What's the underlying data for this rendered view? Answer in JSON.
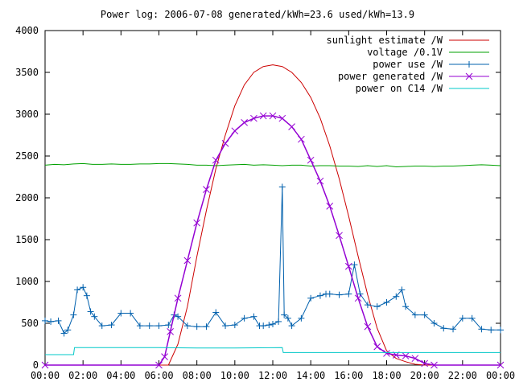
{
  "chart_data": {
    "type": "line",
    "title": "Power log: 2006-07-08 generated/kWh=23.6 used/kWh=13.9",
    "xlabel": "",
    "ylabel": "",
    "xlim": [
      0,
      24
    ],
    "ylim": [
      0,
      4000
    ],
    "x_ticks": [
      0,
      2,
      4,
      6,
      8,
      10,
      12,
      14,
      16,
      18,
      20,
      22,
      24
    ],
    "x_tick_labels": [
      "00:00",
      "02:00",
      "04:00",
      "06:00",
      "08:00",
      "10:00",
      "12:00",
      "14:00",
      "16:00",
      "18:00",
      "20:00",
      "22:00",
      "00:00"
    ],
    "y_ticks": [
      0,
      500,
      1000,
      1500,
      2000,
      2500,
      3000,
      3500,
      4000
    ],
    "y_tick_labels": [
      "0",
      "500",
      "1000",
      "1500",
      "2000",
      "2500",
      "3000",
      "3500",
      "4000"
    ],
    "grid": false,
    "legend_position": "top-right",
    "series": [
      {
        "name": "sunlight estimate /W",
        "color": "#cc0000",
        "marker": "none",
        "x": [
          0,
          6.5,
          7,
          7.5,
          8,
          8.5,
          9,
          9.5,
          10,
          10.5,
          11,
          11.5,
          12,
          12.5,
          13,
          13.5,
          14,
          14.5,
          15,
          15.5,
          16,
          16.5,
          17,
          17.5,
          18,
          18.5,
          19,
          19.5,
          20,
          24
        ],
        "y": [
          0,
          0,
          250,
          700,
          1300,
          1850,
          2350,
          2750,
          3100,
          3350,
          3500,
          3570,
          3590,
          3570,
          3500,
          3380,
          3200,
          2950,
          2620,
          2230,
          1780,
          1300,
          840,
          440,
          170,
          80,
          40,
          10,
          0,
          0
        ]
      },
      {
        "name": "voltage /0.1V",
        "color": "#00a000",
        "marker": "none",
        "x": [
          0,
          0.5,
          1,
          1.5,
          2,
          2.5,
          3,
          3.5,
          4,
          4.5,
          5,
          5.5,
          6,
          6.5,
          7,
          7.5,
          8,
          8.5,
          9,
          9.5,
          10,
          10.5,
          11,
          11.5,
          12,
          12.5,
          13,
          13.5,
          14,
          14.5,
          15,
          15.5,
          16,
          16.5,
          17,
          17.5,
          18,
          18.5,
          19,
          19.5,
          20,
          20.5,
          21,
          21.5,
          22,
          22.5,
          23,
          23.5,
          24
        ],
        "y": [
          2390,
          2400,
          2395,
          2405,
          2410,
          2400,
          2400,
          2405,
          2400,
          2400,
          2405,
          2405,
          2410,
          2410,
          2405,
          2400,
          2390,
          2390,
          2385,
          2390,
          2395,
          2400,
          2390,
          2395,
          2390,
          2385,
          2390,
          2390,
          2380,
          2385,
          2385,
          2380,
          2380,
          2375,
          2385,
          2375,
          2385,
          2370,
          2375,
          2380,
          2380,
          2375,
          2380,
          2380,
          2385,
          2390,
          2395,
          2390,
          2385
        ]
      },
      {
        "name": "power use /W",
        "color": "#0060ad",
        "marker": "plus",
        "x": [
          0,
          0.3,
          0.7,
          1.0,
          1.2,
          1.5,
          1.7,
          2.0,
          2.2,
          2.4,
          2.6,
          3.0,
          3.5,
          4.0,
          4.5,
          5.0,
          5.5,
          6.0,
          6.5,
          6.8,
          7.0,
          7.5,
          8.0,
          8.5,
          9.0,
          9.5,
          10.0,
          10.5,
          11.0,
          11.3,
          11.5,
          11.8,
          12.0,
          12.3,
          12.5,
          12.6,
          12.8,
          13.0,
          13.5,
          14.0,
          14.5,
          14.8,
          15.0,
          15.5,
          16.0,
          16.3,
          16.6,
          17.0,
          17.5,
          18.0,
          18.5,
          18.8,
          19.0,
          19.5,
          20.0,
          20.5,
          21.0,
          21.5,
          22.0,
          22.5,
          23.0,
          23.5,
          24.0
        ],
        "y": [
          530,
          520,
          530,
          380,
          420,
          600,
          900,
          930,
          830,
          640,
          580,
          470,
          480,
          620,
          620,
          470,
          470,
          470,
          480,
          600,
          580,
          470,
          460,
          460,
          630,
          470,
          480,
          560,
          580,
          470,
          470,
          480,
          490,
          520,
          2130,
          600,
          560,
          470,
          560,
          800,
          830,
          850,
          850,
          840,
          850,
          1200,
          850,
          720,
          700,
          750,
          820,
          900,
          700,
          600,
          600,
          500,
          440,
          430,
          560,
          560,
          430,
          420,
          420
        ]
      },
      {
        "name": "power generated /W",
        "color": "#9400d3",
        "marker": "cross",
        "x": [
          0,
          6.0,
          6.3,
          6.6,
          7.0,
          7.5,
          8.0,
          8.5,
          9.0,
          9.5,
          10.0,
          10.5,
          11.0,
          11.5,
          12.0,
          12.5,
          13.0,
          13.5,
          14.0,
          14.5,
          15.0,
          15.5,
          16.0,
          16.5,
          17.0,
          17.5,
          18.0,
          18.5,
          19.0,
          19.5,
          20.0,
          20.5,
          24.0
        ],
        "y": [
          0,
          0,
          100,
          400,
          800,
          1250,
          1700,
          2100,
          2450,
          2650,
          2800,
          2900,
          2950,
          2980,
          2980,
          2950,
          2850,
          2700,
          2450,
          2200,
          1900,
          1550,
          1180,
          800,
          460,
          220,
          140,
          120,
          110,
          80,
          20,
          0,
          0
        ]
      },
      {
        "name": "power on C14 /W",
        "color": "#00c8c8",
        "marker": "none",
        "x": [
          0,
          1.5,
          1.55,
          4,
          6,
          8,
          10,
          12.5,
          12.55,
          16,
          18,
          20,
          24
        ],
        "y": [
          125,
          125,
          210,
          210,
          210,
          205,
          205,
          210,
          150,
          150,
          150,
          150,
          150
        ]
      }
    ]
  }
}
